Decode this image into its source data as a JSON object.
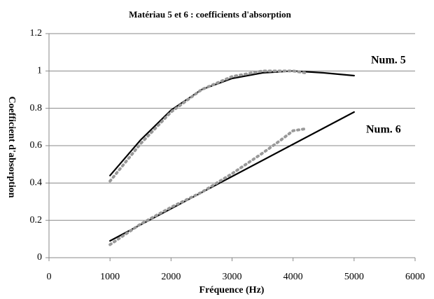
{
  "chart_data": {
    "type": "line",
    "title": "Matériau  5 et 6 : coefficients d'absorption",
    "xlabel": "Fréquence (Hz)",
    "ylabel": "Coefficient d'absorption",
    "annotations": [
      "Num. 5",
      "Num. 6"
    ],
    "xlim": [
      0,
      6000
    ],
    "xticks": [
      0,
      1000,
      2000,
      3000,
      4000,
      5000,
      6000
    ],
    "ylim": [
      0,
      1.2
    ],
    "yticks": [
      0,
      0.2,
      0.4,
      0.6,
      0.8,
      1,
      1.2
    ],
    "grid": true,
    "series": [
      {
        "color": "#000000",
        "style": "solid",
        "x": [
          1000,
          1500,
          2000,
          2500,
          3000,
          3500,
          4000,
          4500,
          5000
        ],
        "values": [
          0.44,
          0.63,
          0.79,
          0.9,
          0.96,
          0.99,
          1.0,
          0.99,
          0.975
        ]
      },
      {
        "color": "#999999",
        "style": "dotted",
        "x": [
          1000,
          1500,
          2000,
          2500,
          3000,
          3500,
          4000,
          4200
        ],
        "values": [
          0.41,
          0.61,
          0.78,
          0.9,
          0.97,
          1.0,
          1.0,
          0.99
        ]
      },
      {
        "color": "#000000",
        "style": "solid",
        "x": [
          1000,
          5000
        ],
        "values": [
          0.09,
          0.78
        ]
      },
      {
        "color": "#999999",
        "style": "dotted",
        "x": [
          1000,
          1500,
          2000,
          2500,
          3000,
          3500,
          3800,
          4000,
          4200
        ],
        "values": [
          0.07,
          0.18,
          0.27,
          0.35,
          0.45,
          0.56,
          0.63,
          0.68,
          0.69
        ]
      }
    ]
  }
}
